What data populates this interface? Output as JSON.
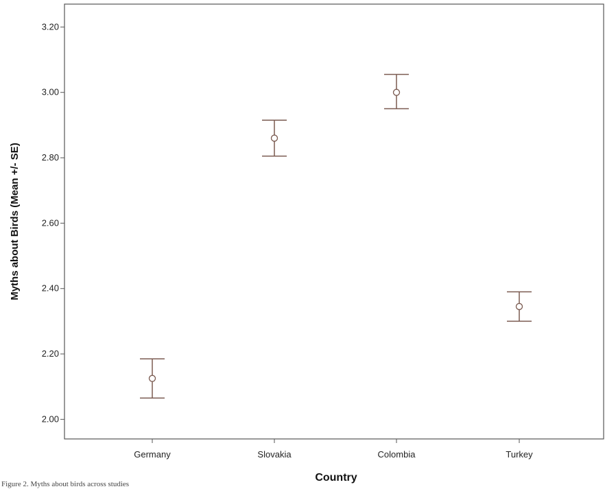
{
  "chart_data": {
    "type": "scatter",
    "variant": "error-bar",
    "xlabel": "Country",
    "ylabel": "Myths about Birds (Mean +/- SE)",
    "categories": [
      "Germany",
      "Slovakia",
      "Colombia",
      "Turkey"
    ],
    "series": [
      {
        "means": [
          2.125,
          2.86,
          3.0,
          2.345
        ],
        "upper": [
          2.185,
          2.915,
          3.055,
          2.39
        ],
        "lower": [
          2.065,
          2.805,
          2.95,
          2.3
        ]
      }
    ],
    "ylim": [
      1.94,
      3.27
    ],
    "yticks": [
      "2.00",
      "2.20",
      "2.40",
      "2.60",
      "2.80",
      "3.00",
      "3.20"
    ],
    "grid": false,
    "color": "#7a5a50"
  },
  "caption": "Figure 2. Myths about birds across studies"
}
